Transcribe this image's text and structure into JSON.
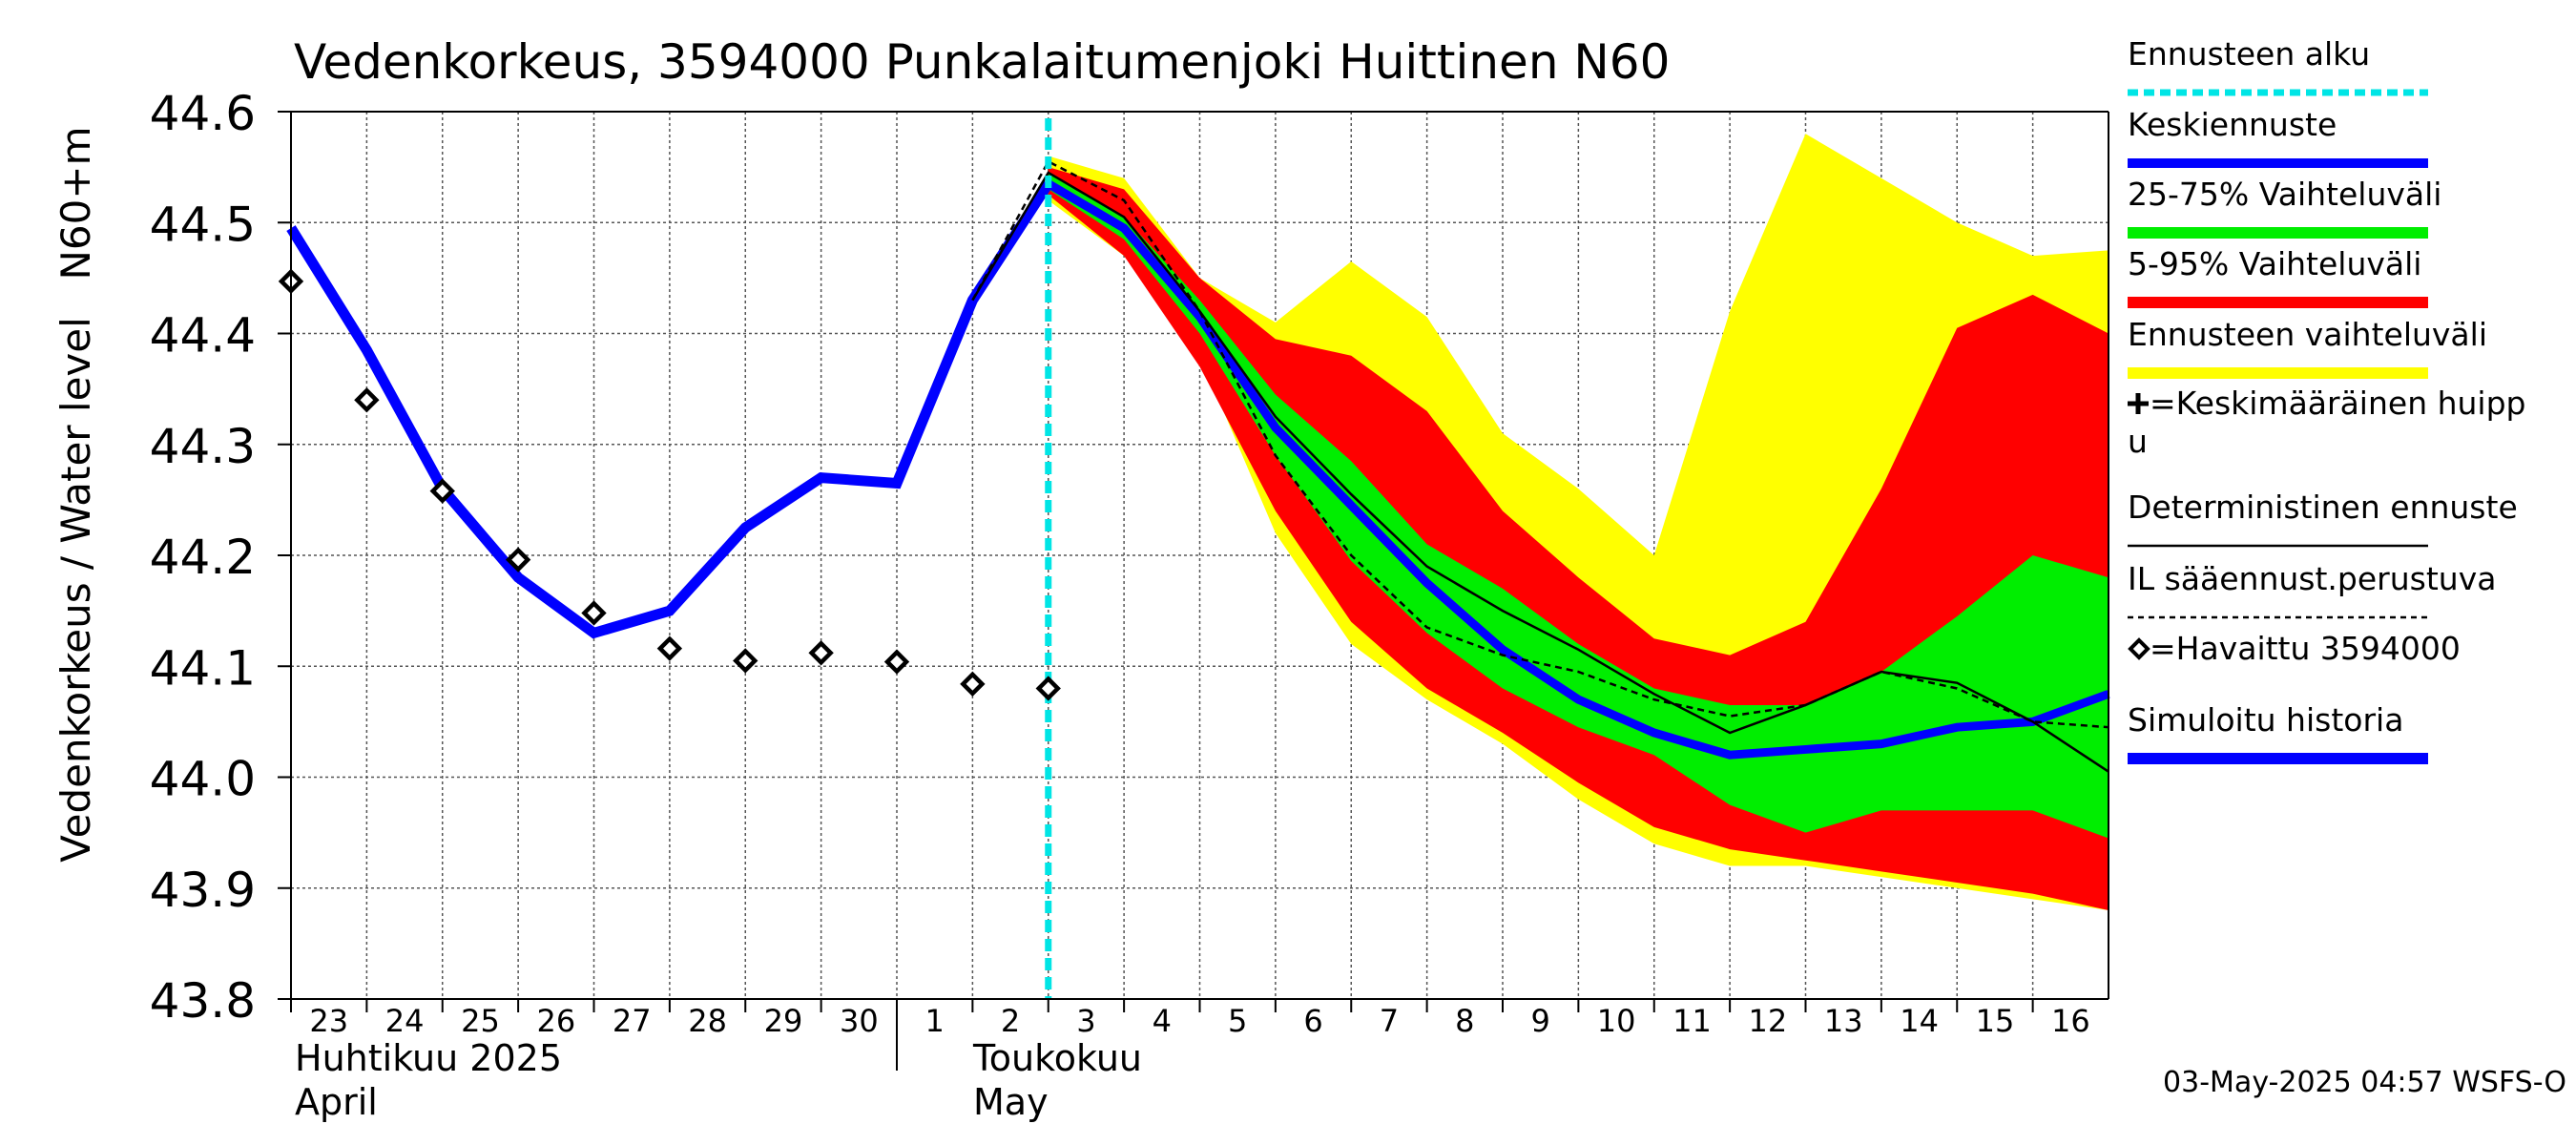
{
  "chart_data": {
    "type": "line",
    "title": "Vedenkorkeus, 3594000 Punkalaitumenjoki Huittinen N60",
    "ylabel": "Vedenkorkeus / Water level",
    "yunit": "N60+m",
    "ylim": [
      43.8,
      44.6
    ],
    "yticks": [
      "43.8",
      "43.9",
      "44.0",
      "44.1",
      "44.2",
      "44.3",
      "44.4",
      "44.5",
      "44.6"
    ],
    "xlim": [
      "2025-04-23",
      "2025-05-17"
    ],
    "xtick_labels": [
      "23",
      "24",
      "25",
      "26",
      "27",
      "28",
      "29",
      "30",
      "1",
      "2",
      "3",
      "4",
      "5",
      "6",
      "7",
      "8",
      "9",
      "10",
      "11",
      "12",
      "13",
      "14",
      "15",
      "16"
    ],
    "month_labels": [
      {
        "fi": "Huhtikuu  2025",
        "en": "April"
      },
      {
        "fi": "Toukokuu",
        "en": "May"
      }
    ],
    "grid": true,
    "footer": "03-May-2025 04:57 WSFS-O",
    "forecast_start": "2025-05-03T00:00",
    "colors": {
      "forecast_start": "#00e5e5",
      "mean_forecast": "#0000ff",
      "band_25_75": "#00ee00",
      "band_5_95": "#ff0000",
      "band_full": "#ffff00",
      "deterministic": "#000000",
      "il_forecast": "#000000",
      "observed": "#000000",
      "simulated": "#0000ff"
    },
    "legend": [
      {
        "label": "Ennusteen alku",
        "style": "forecast_start"
      },
      {
        "label": "Keskiennuste",
        "style": "mean"
      },
      {
        "label": "25-75% Vaihteluväli",
        "style": "band_25_75"
      },
      {
        "label": "5-95% Vaihteluväli",
        "style": "band_5_95"
      },
      {
        "label": "Ennusteen vaihteluväli",
        "style": "band_full"
      },
      {
        "label": "=Keskimääräinen huipp",
        "label2": "u",
        "style": "peak"
      },
      {
        "label": "Deterministinen ennuste",
        "style": "deterministic"
      },
      {
        "label": "IL sääennust.perustuva",
        "style": "il"
      },
      {
        "label": "=Havaittu 3594000",
        "style": "observed"
      },
      {
        "label": "Simuloitu historia",
        "style": "simulated"
      }
    ],
    "bands": {
      "full": {
        "x": [
          "2025-05-03",
          "2025-05-04",
          "2025-05-05",
          "2025-05-06",
          "2025-05-07",
          "2025-05-08",
          "2025-05-09",
          "2025-05-10",
          "2025-05-11",
          "2025-05-12",
          "2025-05-13",
          "2025-05-14",
          "2025-05-15",
          "2025-05-16",
          "2025-05-17"
        ],
        "upper": [
          44.56,
          44.54,
          44.45,
          44.41,
          44.465,
          44.415,
          44.31,
          44.26,
          44.2,
          44.42,
          44.58,
          44.54,
          44.5,
          44.47,
          44.475
        ],
        "lower": [
          44.52,
          44.47,
          44.38,
          44.22,
          44.12,
          44.07,
          44.03,
          43.98,
          43.94,
          43.92,
          43.92,
          43.91,
          43.9,
          43.89,
          43.88
        ]
      },
      "p5_95": {
        "x": [
          "2025-05-03",
          "2025-05-04",
          "2025-05-05",
          "2025-05-06",
          "2025-05-07",
          "2025-05-08",
          "2025-05-09",
          "2025-05-10",
          "2025-05-11",
          "2025-05-12",
          "2025-05-13",
          "2025-05-14",
          "2025-05-15",
          "2025-05-16",
          "2025-05-17"
        ],
        "upper": [
          44.55,
          44.53,
          44.45,
          44.395,
          44.38,
          44.33,
          44.24,
          44.18,
          44.125,
          44.11,
          44.14,
          44.26,
          44.405,
          44.435,
          44.4
        ],
        "lower": [
          44.525,
          44.47,
          44.37,
          44.24,
          44.14,
          44.08,
          44.04,
          43.995,
          43.955,
          43.935,
          43.925,
          43.915,
          43.905,
          43.895,
          43.88
        ]
      },
      "p25_75": {
        "x": [
          "2025-05-03",
          "2025-05-04",
          "2025-05-05",
          "2025-05-06",
          "2025-05-07",
          "2025-05-08",
          "2025-05-09",
          "2025-05-10",
          "2025-05-11",
          "2025-05-12",
          "2025-05-13",
          "2025-05-14",
          "2025-05-15",
          "2025-05-16",
          "2025-05-17"
        ],
        "upper": [
          44.545,
          44.505,
          44.43,
          44.345,
          44.285,
          44.21,
          44.17,
          44.12,
          44.08,
          44.065,
          44.065,
          44.095,
          44.145,
          44.2,
          44.18
        ],
        "lower": [
          44.53,
          44.485,
          44.4,
          44.29,
          44.195,
          44.13,
          44.08,
          44.045,
          44.02,
          43.975,
          43.95,
          43.97,
          43.97,
          43.97,
          43.945
        ]
      }
    },
    "series": [
      {
        "name": "Simuloitu historia",
        "style": "simulated",
        "x": [
          "2025-04-23",
          "2025-04-24",
          "2025-04-25",
          "2025-04-26",
          "2025-04-27",
          "2025-04-28",
          "2025-04-29",
          "2025-04-30",
          "2025-05-01",
          "2025-05-02",
          "2025-05-03"
        ],
        "y": [
          44.495,
          44.385,
          44.26,
          44.18,
          44.13,
          44.15,
          44.225,
          44.27,
          44.265,
          44.43,
          44.535
        ]
      },
      {
        "name": "Keskiennuste",
        "style": "mean",
        "x": [
          "2025-05-03",
          "2025-05-04",
          "2025-05-05",
          "2025-05-06",
          "2025-05-07",
          "2025-05-08",
          "2025-05-09",
          "2025-05-10",
          "2025-05-11",
          "2025-05-12",
          "2025-05-13",
          "2025-05-14",
          "2025-05-15",
          "2025-05-16",
          "2025-05-17"
        ],
        "y": [
          44.535,
          44.495,
          44.415,
          44.315,
          44.245,
          44.175,
          44.115,
          44.07,
          44.04,
          44.02,
          44.025,
          44.03,
          44.045,
          44.05,
          44.075
        ]
      },
      {
        "name": "Deterministinen ennuste",
        "style": "deterministic",
        "x": [
          "2025-05-02",
          "2025-05-03",
          "2025-05-04",
          "2025-05-05",
          "2025-05-06",
          "2025-05-07",
          "2025-05-08",
          "2025-05-09",
          "2025-05-10",
          "2025-05-11",
          "2025-05-12",
          "2025-05-13",
          "2025-05-14",
          "2025-05-15",
          "2025-05-16",
          "2025-05-17"
        ],
        "y": [
          44.43,
          44.545,
          44.505,
          44.42,
          44.325,
          44.255,
          44.19,
          44.15,
          44.115,
          44.075,
          44.04,
          44.065,
          44.095,
          44.085,
          44.05,
          44.005
        ]
      },
      {
        "name": "IL sääennust.perustuva",
        "style": "il",
        "x": [
          "2025-05-02",
          "2025-05-03",
          "2025-05-04",
          "2025-05-05",
          "2025-05-06",
          "2025-05-07",
          "2025-05-08",
          "2025-05-09",
          "2025-05-10",
          "2025-05-11",
          "2025-05-12",
          "2025-05-13",
          "2025-05-14",
          "2025-05-15",
          "2025-05-16",
          "2025-05-17"
        ],
        "y": [
          44.43,
          44.555,
          44.52,
          44.42,
          44.29,
          44.2,
          44.135,
          44.11,
          44.095,
          44.07,
          44.055,
          44.065,
          44.095,
          44.08,
          44.05,
          44.045
        ]
      },
      {
        "name": "Havaittu 3594000",
        "style": "observed",
        "x": [
          "2025-04-23",
          "2025-04-24",
          "2025-04-25",
          "2025-04-26",
          "2025-04-27",
          "2025-04-28",
          "2025-04-29",
          "2025-04-30",
          "2025-05-01",
          "2025-05-02",
          "2025-05-03"
        ],
        "y": [
          44.447,
          44.34,
          44.258,
          44.196,
          44.148,
          44.116,
          44.105,
          44.112,
          44.104,
          44.084,
          44.08
        ]
      }
    ]
  }
}
